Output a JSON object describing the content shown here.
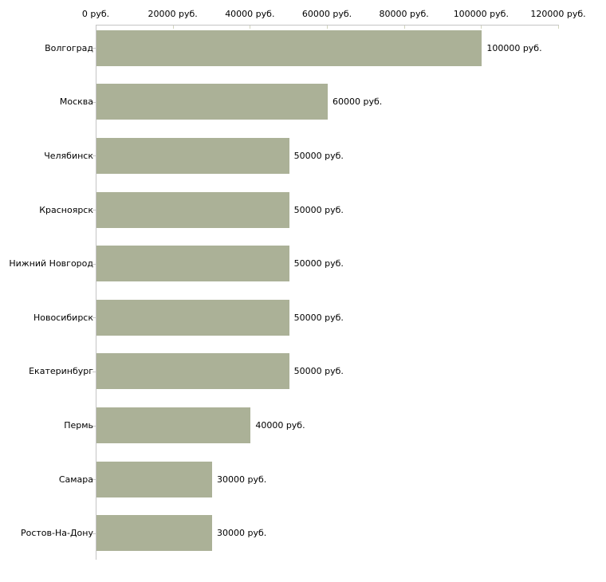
{
  "chart_data": {
    "type": "bar",
    "orientation": "horizontal",
    "title": "",
    "xlabel": "",
    "ylabel": "",
    "xlim": [
      0,
      120000
    ],
    "grid": false,
    "legend": "none",
    "bar_color": "#ABB197",
    "axis_color": "#C4C4C4",
    "x_tick_mark_color": "#D2D5BE",
    "category_tick_color": "#C9C9C9",
    "text_color": "#000000",
    "value_suffix": " руб.",
    "categories": [
      "Волгоград",
      "Москва",
      "Челябинск",
      "Красноярск",
      "Нижний Новгород",
      "Новосибирск",
      "Екатеринбург",
      "Пермь",
      "Самара",
      "Ростов-На-Дону"
    ],
    "values": [
      100000,
      60000,
      50000,
      50000,
      50000,
      50000,
      50000,
      40000,
      30000,
      30000
    ],
    "value_labels": [
      "100000 руб.",
      "60000 руб.",
      "50000 руб.",
      "50000 руб.",
      "50000 руб.",
      "50000 руб.",
      "50000 руб.",
      "40000 руб.",
      "30000 руб.",
      "30000 руб."
    ],
    "x_ticks": [
      0,
      20000,
      40000,
      60000,
      80000,
      100000,
      120000
    ],
    "x_tick_labels": [
      "0 руб.",
      "20000 руб.",
      "40000 руб.",
      "60000 руб.",
      "80000 руб.",
      "100000 руб.",
      "120000 руб."
    ]
  }
}
